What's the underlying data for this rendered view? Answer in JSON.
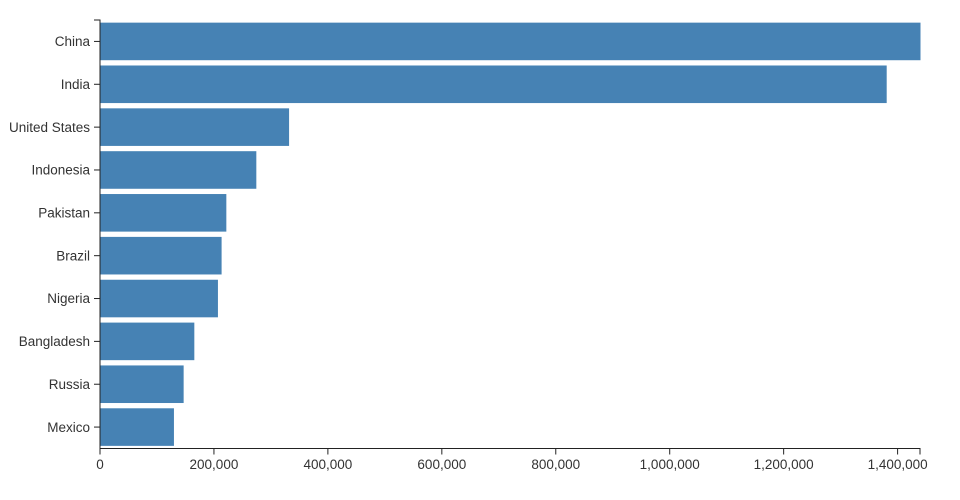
{
  "chart_data": {
    "type": "bar",
    "orientation": "horizontal",
    "title": "",
    "xlabel": "",
    "ylabel": "",
    "categories": [
      "China",
      "India",
      "United States",
      "Indonesia",
      "Pakistan",
      "Brazil",
      "Nigeria",
      "Bangladesh",
      "Russia",
      "Mexico"
    ],
    "values": [
      1439324,
      1380004,
      331003,
      273524,
      220892,
      212559,
      206140,
      164689,
      145934,
      128933
    ],
    "xlim": [
      0,
      1439324
    ],
    "x_ticks": [
      {
        "value": 0,
        "label": "0"
      },
      {
        "value": 200000,
        "label": "200,000"
      },
      {
        "value": 400000,
        "label": "400,000"
      },
      {
        "value": 600000,
        "label": "600,000"
      },
      {
        "value": 800000,
        "label": "800,000"
      },
      {
        "value": 1000000,
        "label": "1,000,000"
      },
      {
        "value": 1200000,
        "label": "1,200,000"
      },
      {
        "value": 1400000,
        "label": "1,400,000"
      }
    ],
    "grid": false,
    "legend": false,
    "colors": {
      "bar": "#4682b4",
      "axis": "#222222",
      "tick_label": "#333333"
    }
  }
}
